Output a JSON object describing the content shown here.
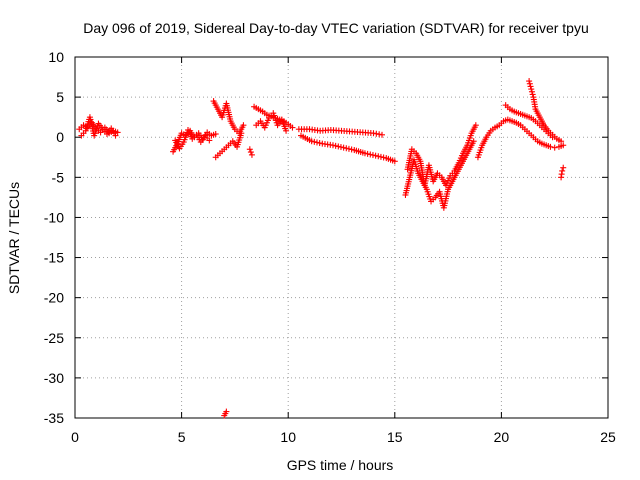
{
  "chart_data": {
    "type": "scatter",
    "title": "Day 096 of 2019, Sidereal Day-to-day VTEC variation (SDTVAR) for receiver tpyu",
    "xlabel": "GPS time / hours",
    "ylabel": "SDTVAR / TECUs",
    "xlim": [
      0,
      25
    ],
    "ylim": [
      -35,
      10
    ],
    "xticks": [
      0,
      5,
      10,
      15,
      20,
      25
    ],
    "yticks": [
      10,
      5,
      0,
      -5,
      -10,
      -15,
      -20,
      -25,
      -30,
      -35
    ],
    "grid": true,
    "marker": "plus",
    "color": "#ff0000",
    "series": [
      {
        "name": "SDTVAR",
        "segments": [
          {
            "x": [
              0.2,
              0.4,
              0.6,
              0.8,
              1.0,
              1.2,
              1.4,
              1.6,
              1.8,
              2.0
            ],
            "y": [
              1.0,
              1.5,
              1.2,
              1.8,
              1.0,
              0.6,
              1.2,
              0.5,
              0.8,
              0.6
            ]
          },
          {
            "x": [
              0.3,
              0.5,
              0.7,
              0.9,
              1.1,
              1.3,
              1.5,
              1.7,
              1.9
            ],
            "y": [
              0.2,
              0.8,
              2.5,
              0.2,
              1.7,
              1.0,
              0.4,
              1.1,
              0.2
            ]
          },
          {
            "x": [
              4.6,
              4.8,
              5.0,
              5.2,
              5.4,
              5.6,
              5.8,
              6.0,
              6.2,
              6.4,
              6.6
            ],
            "y": [
              -1.8,
              -0.8,
              0.5,
              0.2,
              0.8,
              0.0,
              0.5,
              -0.3,
              0.6,
              0.2,
              0.4
            ]
          },
          {
            "x": [
              4.7,
              4.9,
              5.1,
              5.3,
              5.5,
              5.7,
              5.9,
              6.1,
              6.3
            ],
            "y": [
              -0.4,
              -1.4,
              -0.6,
              0.9,
              -0.2,
              0.3,
              -0.6,
              0.2,
              -0.4
            ]
          },
          {
            "x": [
              6.5,
              6.7,
              6.9,
              7.1,
              7.3,
              7.5,
              7.7,
              7.9
            ],
            "y": [
              4.5,
              3.5,
              2.5,
              4.2,
              2.0,
              1.0,
              0.5,
              1.5
            ]
          },
          {
            "x": [
              6.6,
              6.8,
              7.0,
              7.2,
              7.4,
              7.6,
              7.8
            ],
            "y": [
              -2.5,
              -2.0,
              -1.5,
              -1.0,
              -0.5,
              -1.2,
              0.5
            ]
          },
          {
            "x": [
              7.0,
              7.1
            ],
            "y": [
              -34.7,
              -34.2
            ]
          },
          {
            "x": [
              8.2,
              8.3
            ],
            "y": [
              -1.5,
              -2.2
            ]
          },
          {
            "x": [
              8.4,
              8.6,
              8.8,
              9.0,
              9.2,
              9.4,
              9.6,
              9.8,
              10.0,
              10.2
            ],
            "y": [
              3.8,
              3.5,
              3.2,
              2.8,
              2.6,
              2.4,
              2.2,
              2.0,
              1.6,
              1.2
            ]
          },
          {
            "x": [
              8.5,
              8.7,
              8.9,
              9.1,
              9.3,
              9.5,
              9.7,
              9.9
            ],
            "y": [
              1.5,
              2.0,
              1.2,
              2.4,
              3.0,
              1.5,
              2.2,
              0.8
            ]
          },
          {
            "x": [
              10.5,
              11.0,
              11.5,
              12.0,
              12.5,
              13.0,
              13.5,
              14.0,
              14.4
            ],
            "y": [
              1.0,
              1.0,
              0.8,
              0.9,
              0.8,
              0.7,
              0.6,
              0.5,
              0.3
            ]
          },
          {
            "x": [
              10.6,
              11.1,
              11.6,
              12.1,
              12.6,
              13.1,
              13.6,
              14.1,
              14.6,
              15.0
            ],
            "y": [
              0.2,
              -0.5,
              -0.8,
              -1.0,
              -1.3,
              -1.6,
              -2.0,
              -2.3,
              -2.6,
              -3.0
            ]
          },
          {
            "x": [
              15.5,
              15.7,
              15.9,
              16.1,
              16.3,
              16.5,
              16.7,
              16.9,
              17.1,
              17.3,
              17.5,
              17.7,
              17.9,
              18.1,
              18.3,
              18.5,
              18.7
            ],
            "y": [
              -7.2,
              -5.0,
              -2.8,
              -4.5,
              -5.5,
              -6.5,
              -8.0,
              -7.5,
              -6.8,
              -8.8,
              -6.5,
              -5.5,
              -4.5,
              -3.5,
              -2.5,
              -1.5,
              -0.5
            ]
          },
          {
            "x": [
              15.6,
              15.8,
              16.0,
              16.2,
              16.4,
              16.6,
              16.8,
              17.0,
              17.2,
              17.4,
              17.6,
              17.8,
              18.0,
              18.2,
              18.4,
              18.6,
              18.8
            ],
            "y": [
              -4.0,
              -1.5,
              -2.0,
              -3.0,
              -6.0,
              -3.5,
              -5.5,
              -4.5,
              -5.0,
              -6.0,
              -4.8,
              -4.2,
              -3.2,
              -2.0,
              -1.0,
              0.5,
              1.5
            ]
          },
          {
            "x": [
              18.9,
              19.1,
              19.3,
              19.5,
              19.7,
              19.9,
              20.1,
              20.3,
              20.5,
              20.7,
              20.9,
              21.1,
              21.3,
              21.5,
              21.7,
              21.9,
              22.1,
              22.3,
              22.5,
              22.7,
              22.9
            ],
            "y": [
              -2.5,
              -1.0,
              0.0,
              0.8,
              1.2,
              1.5,
              2.0,
              2.2,
              2.0,
              1.8,
              1.5,
              1.0,
              0.5,
              0.0,
              -0.5,
              -0.8,
              -1.0,
              -1.2,
              -1.3,
              -1.2,
              -1.0
            ]
          },
          {
            "x": [
              20.2,
              20.4,
              20.6,
              20.8,
              21.0,
              21.2,
              21.4,
              21.6,
              21.8,
              22.0,
              22.2,
              22.4
            ],
            "y": [
              4.0,
              3.5,
              3.2,
              3.0,
              2.8,
              2.6,
              2.4,
              2.0,
              1.5,
              1.0,
              0.5,
              0.0
            ]
          },
          {
            "x": [
              21.3,
              21.4,
              21.5,
              21.6,
              21.8,
              22.0,
              22.2,
              22.4,
              22.6,
              22.8
            ],
            "y": [
              7.0,
              6.0,
              5.0,
              3.5,
              2.5,
              1.5,
              0.8,
              0.3,
              -0.2,
              -0.5
            ]
          },
          {
            "x": [
              22.8,
              22.85,
              22.9
            ],
            "y": [
              -5.0,
              -4.2,
              -3.8
            ]
          }
        ]
      }
    ]
  }
}
